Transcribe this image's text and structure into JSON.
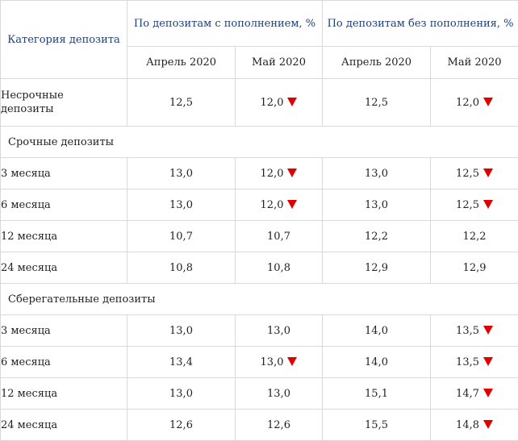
{
  "header": {
    "category": "Категория депозита",
    "group_with": "По депозитам с пополнением, %",
    "group_without": "По депозитам без пополнения, %",
    "april": "Апрель 2020",
    "may": "Май 2020"
  },
  "rows": [
    {
      "type": "data",
      "label": "Несрочные депозиты",
      "with_apr": "12,5",
      "with_may": "12,0",
      "with_may_down": true,
      "without_apr": "12,5",
      "without_may": "12,0",
      "without_may_down": true
    },
    {
      "type": "section",
      "label": "Срочные депозиты"
    },
    {
      "type": "data",
      "label": "3 месяца",
      "with_apr": "13,0",
      "with_may": "12,0",
      "with_may_down": true,
      "without_apr": "13,0",
      "without_may": "12,5",
      "without_may_down": true
    },
    {
      "type": "data",
      "label": "6 месяца",
      "with_apr": "13,0",
      "with_may": "12,0",
      "with_may_down": true,
      "without_apr": "13,0",
      "without_may": "12,5",
      "without_may_down": true
    },
    {
      "type": "data",
      "label": "12 месяца",
      "with_apr": "10,7",
      "with_may": "10,7",
      "with_may_down": false,
      "without_apr": "12,2",
      "without_may": "12,2",
      "without_may_down": false
    },
    {
      "type": "data",
      "label": "24 месяца",
      "with_apr": "10,8",
      "with_may": "10,8",
      "with_may_down": false,
      "without_apr": "12,9",
      "without_may": "12,9",
      "without_may_down": false
    },
    {
      "type": "section",
      "label": "Сберегательные депозиты"
    },
    {
      "type": "data",
      "label": "3 месяца",
      "with_apr": "13,0",
      "with_may": "13,0",
      "with_may_down": false,
      "without_apr": "14,0",
      "without_may": "13,5",
      "without_may_down": true
    },
    {
      "type": "data",
      "label": "6 месяца",
      "with_apr": "13,4",
      "with_may": "13,0",
      "with_may_down": true,
      "without_apr": "14,0",
      "without_may": "13,5",
      "without_may_down": true
    },
    {
      "type": "data",
      "label": "12 месяца",
      "with_apr": "13,0",
      "with_may": "13,0",
      "with_may_down": false,
      "without_apr": "15,1",
      "without_may": "14,7",
      "without_may_down": true
    },
    {
      "type": "data",
      "label": "24 месяца",
      "with_apr": "12,6",
      "with_may": "12,6",
      "with_may_down": false,
      "without_apr": "15,5",
      "without_may": "14,8",
      "without_may_down": true
    }
  ],
  "colors": {
    "header_text": "#1f3f7a",
    "down_arrow": "#e00000",
    "border": "#d9d9d9"
  },
  "icons": {
    "decrease": "red-down-triangle-icon"
  }
}
